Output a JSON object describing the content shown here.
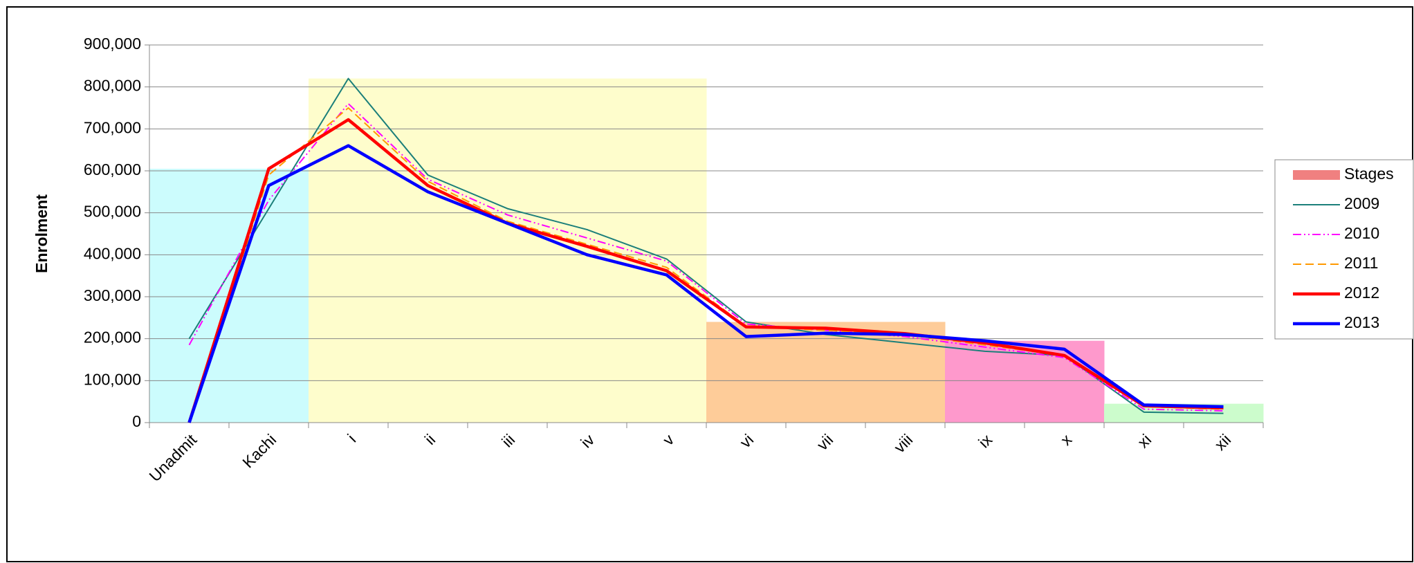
{
  "chart_data": {
    "type": "line",
    "ylabel": "Enrolment",
    "categories": [
      "Unadmit",
      "Kachi",
      "i",
      "ii",
      "iii",
      "iv",
      "v",
      "vi",
      "vii",
      "viii",
      "ix",
      "x",
      "xi",
      "xii"
    ],
    "ylim": [
      0,
      900000
    ],
    "yticks": [
      0,
      {
        "value": 100000,
        "label": "100,000"
      },
      {
        "value": 200000,
        "label": "200,000"
      },
      {
        "value": 300000,
        "label": "300,000"
      },
      {
        "value": 400000,
        "label": "400,000"
      },
      {
        "value": 500000,
        "label": "500,000"
      },
      {
        "value": 600000,
        "label": "600,000"
      },
      {
        "value": 700000,
        "label": "700,000"
      },
      {
        "value": 800000,
        "label": "800,000"
      },
      {
        "value": 900000,
        "label": "900,000"
      }
    ],
    "grid": true,
    "legend": "right",
    "series": [
      {
        "name": "Stages",
        "type": "bar",
        "color": "#f08080",
        "colors": [
          "#ccfcfd",
          "#ccfcfd",
          "#fefdcc",
          "#fefdcc",
          "#fefdcc",
          "#fefdcc",
          "#fefdcc",
          "#fecc99",
          "#fecc99",
          "#fecc99",
          "#fe99cc",
          "#fe99cc",
          "#ccfccc",
          "#ccfccc"
        ],
        "values": [
          605000,
          605000,
          820000,
          820000,
          820000,
          820000,
          820000,
          240000,
          240000,
          240000,
          195000,
          195000,
          45000,
          45000
        ]
      },
      {
        "name": "2009",
        "color": "#1b7f7a",
        "width": 2,
        "dash": "",
        "values": [
          200000,
          510000,
          820000,
          590000,
          510000,
          460000,
          390000,
          240000,
          210000,
          190000,
          170000,
          160000,
          25000,
          22000
        ]
      },
      {
        "name": "2010",
        "color": "#ff00ff",
        "width": 2,
        "dash": "12 4 2 4 2 4",
        "values": [
          185000,
          530000,
          760000,
          580000,
          495000,
          440000,
          385000,
          235000,
          220000,
          205000,
          180000,
          155000,
          32000,
          28000
        ]
      },
      {
        "name": "2011",
        "color": "#ff9900",
        "width": 2,
        "dash": "12 6",
        "values": [
          0,
          590000,
          750000,
          575000,
          480000,
          425000,
          370000,
          230000,
          220000,
          210000,
          185000,
          160000,
          38000,
          32000
        ]
      },
      {
        "name": "2012",
        "color": "#ff0000",
        "width": 4.5,
        "dash": "",
        "values": [
          0,
          605000,
          722000,
          565000,
          475000,
          420000,
          362000,
          228000,
          225000,
          212000,
          190000,
          160000,
          40000,
          35000
        ]
      },
      {
        "name": "2013",
        "color": "#0000ff",
        "width": 4.5,
        "dash": "",
        "values": [
          0,
          565000,
          660000,
          550000,
          475000,
          400000,
          352000,
          205000,
          213000,
          210000,
          195000,
          175000,
          42000,
          38000
        ]
      }
    ]
  }
}
